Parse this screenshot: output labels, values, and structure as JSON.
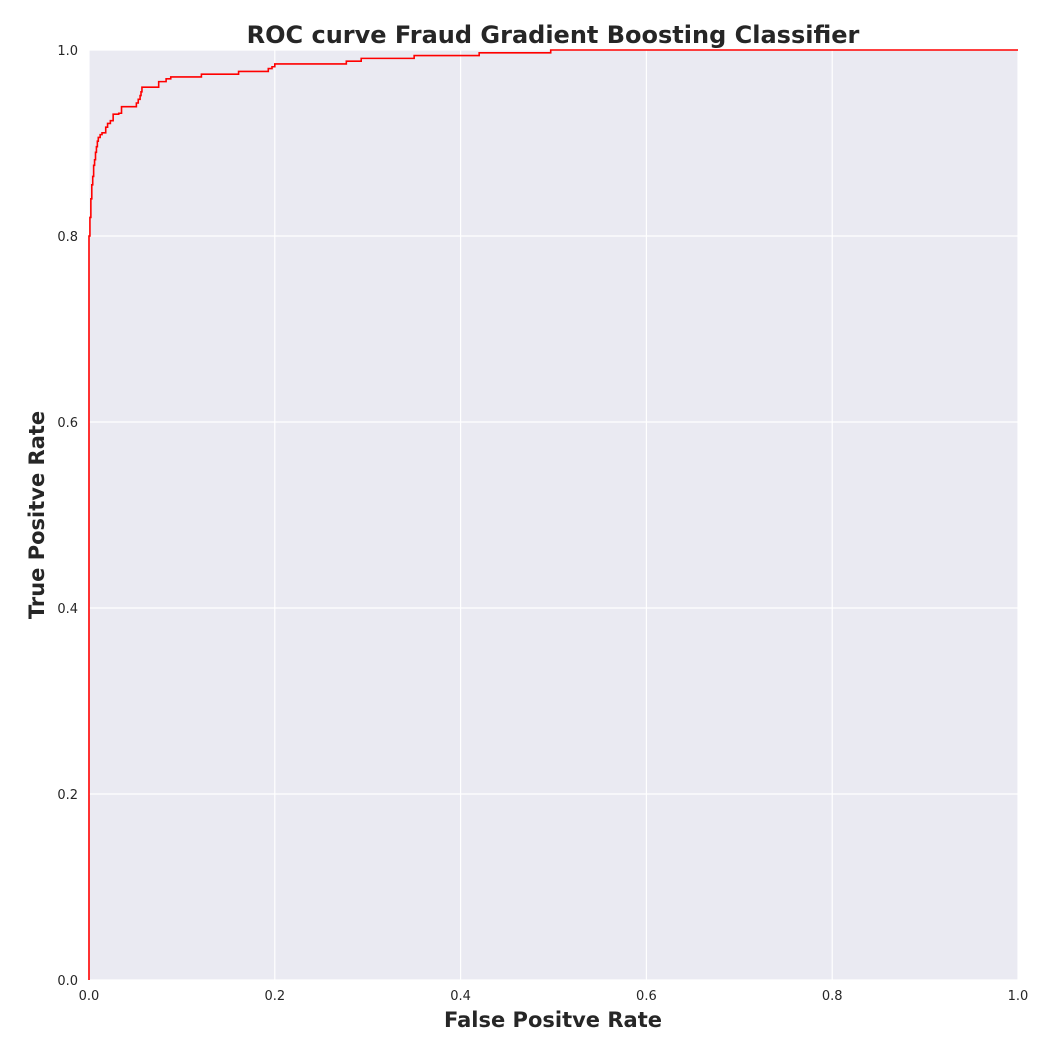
{
  "chart_data": {
    "type": "line",
    "title": "ROC curve Fraud Gradient Boosting Classifier",
    "xlabel": "False Positve Rate",
    "ylabel": "True Positve Rate",
    "xlim": [
      0.0,
      1.0
    ],
    "ylim": [
      0.0,
      1.0
    ],
    "x_ticks": [
      "0.0",
      "0.2",
      "0.4",
      "0.6",
      "0.8",
      "1.0"
    ],
    "y_ticks": [
      "0.0",
      "0.2",
      "0.4",
      "0.6",
      "0.8",
      "1.0"
    ],
    "grid": true,
    "legend": "none",
    "background_color": "#eaeaf2",
    "grid_color": "#ffffff",
    "series": [
      {
        "color": "#ff0000",
        "x": [
          0.0,
          0.0,
          0.0,
          0.0,
          0.001,
          0.001,
          0.002,
          0.002,
          0.003,
          0.003,
          0.004,
          0.004,
          0.005,
          0.005,
          0.006,
          0.006,
          0.007,
          0.007,
          0.008,
          0.008,
          0.009,
          0.009,
          0.01,
          0.01,
          0.012,
          0.012,
          0.014,
          0.014,
          0.018,
          0.018,
          0.02,
          0.02,
          0.023,
          0.023,
          0.026,
          0.026,
          0.032,
          0.032,
          0.035,
          0.035,
          0.051,
          0.051,
          0.053,
          0.053,
          0.055,
          0.055,
          0.056,
          0.056,
          0.057,
          0.057,
          0.075,
          0.075,
          0.083,
          0.083,
          0.088,
          0.088,
          0.121,
          0.121,
          0.161,
          0.161,
          0.193,
          0.193,
          0.197,
          0.197,
          0.2,
          0.2,
          0.277,
          0.277,
          0.293,
          0.293,
          0.35,
          0.35,
          0.42,
          0.42,
          0.497,
          0.497,
          1.0
        ],
        "y": [
          0.0,
          0.695,
          0.695,
          0.8,
          0.8,
          0.82,
          0.82,
          0.84,
          0.84,
          0.855,
          0.855,
          0.864,
          0.864,
          0.876,
          0.876,
          0.882,
          0.882,
          0.89,
          0.89,
          0.896,
          0.896,
          0.902,
          0.902,
          0.906,
          0.906,
          0.909,
          0.909,
          0.911,
          0.911,
          0.917,
          0.917,
          0.921,
          0.921,
          0.924,
          0.924,
          0.931,
          0.931,
          0.932,
          0.932,
          0.939,
          0.939,
          0.943,
          0.943,
          0.947,
          0.947,
          0.951,
          0.951,
          0.955,
          0.955,
          0.96,
          0.96,
          0.966,
          0.966,
          0.969,
          0.969,
          0.971,
          0.971,
          0.974,
          0.974,
          0.977,
          0.977,
          0.98,
          0.98,
          0.982,
          0.982,
          0.985,
          0.985,
          0.988,
          0.988,
          0.991,
          0.991,
          0.994,
          0.994,
          0.997,
          0.997,
          1.0,
          1.0
        ]
      }
    ]
  }
}
